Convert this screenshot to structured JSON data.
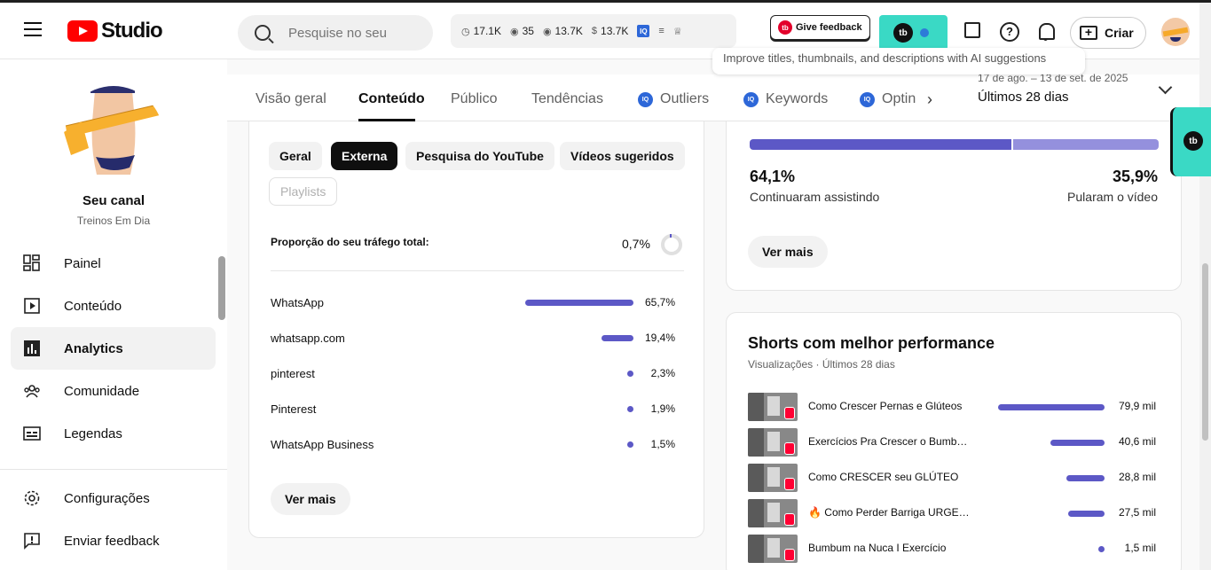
{
  "header": {
    "studio_label": "Studio",
    "search_placeholder": "Pesquise no seu canal",
    "stats": {
      "subscribers": "17.1K",
      "views_a": "35",
      "views_b": "13.7K",
      "money": "13.7K"
    },
    "give_feedback": "Give feedback",
    "create_label": "Criar"
  },
  "tooltip": "Improve titles, thumbnails, and descriptions with AI suggestions",
  "sidebar": {
    "channel_name": "Seu canal",
    "channel_handle": "Treinos Em Dia",
    "items": [
      {
        "label": "Painel",
        "icon": "dashboard-icon"
      },
      {
        "label": "Conteúdo",
        "icon": "content-icon"
      },
      {
        "label": "Analytics",
        "icon": "analytics-icon",
        "active": true
      },
      {
        "label": "Comunidade",
        "icon": "community-icon"
      },
      {
        "label": "Legendas",
        "icon": "subtitles-icon"
      },
      {
        "label": "Configurações",
        "icon": "gear-icon"
      },
      {
        "label": "Enviar feedback",
        "icon": "feedback-icon"
      }
    ]
  },
  "tabs": {
    "items": [
      "Visão geral",
      "Conteúdo",
      "Público",
      "Tendências",
      "Outliers",
      "Keywords",
      "Optin"
    ],
    "active": "Conteúdo",
    "date_range": "17 de ago. – 13 de set. de 2025",
    "date_label": "Últimos 28 dias"
  },
  "traffic_card": {
    "chips": [
      "Geral",
      "Externa",
      "Pesquisa do YouTube",
      "Vídeos sugeridos",
      "Playlists"
    ],
    "selected_chip": "Externa",
    "share_label": "Proporção do seu tráfego total:",
    "share_value": "0,7%",
    "sources": [
      {
        "name": "WhatsApp",
        "percent": "65,7%",
        "fraction": 0.657
      },
      {
        "name": "whatsapp.com",
        "percent": "19,4%",
        "fraction": 0.194
      },
      {
        "name": "pinterest",
        "percent": "2,3%",
        "fraction": 0.023
      },
      {
        "name": "Pinterest",
        "percent": "1,9%",
        "fraction": 0.019
      },
      {
        "name": "WhatsApp Business",
        "percent": "1,5%",
        "fraction": 0.015
      }
    ],
    "more_label": "Ver mais"
  },
  "retention_card": {
    "continued_pct": "64,1%",
    "continued_label": "Continuaram assistindo",
    "skipped_pct": "35,9%",
    "skipped_label": "Pularam o vídeo",
    "more_label": "Ver mais"
  },
  "shorts_card": {
    "title": "Shorts com melhor performance",
    "subtitle": "Visualizações · Últimos 28 dias",
    "items": [
      {
        "title": "Como Crescer Pernas e Glúteos",
        "views": "79,9 mil",
        "value": 79.9
      },
      {
        "title": "Exercícios Pra Crescer o Bumbum",
        "views": "40,6 mil",
        "value": 40.6
      },
      {
        "title": "Como CRESCER seu GLÚTEO",
        "views": "28,8 mil",
        "value": 28.8
      },
      {
        "title": "🔥 Como Perder Barriga URGENTE",
        "views": "27,5 mil",
        "value": 27.5
      },
      {
        "title": "Bumbum na Nuca I Exercício",
        "views": "1,5 mil",
        "value": 1.5
      }
    ]
  }
}
